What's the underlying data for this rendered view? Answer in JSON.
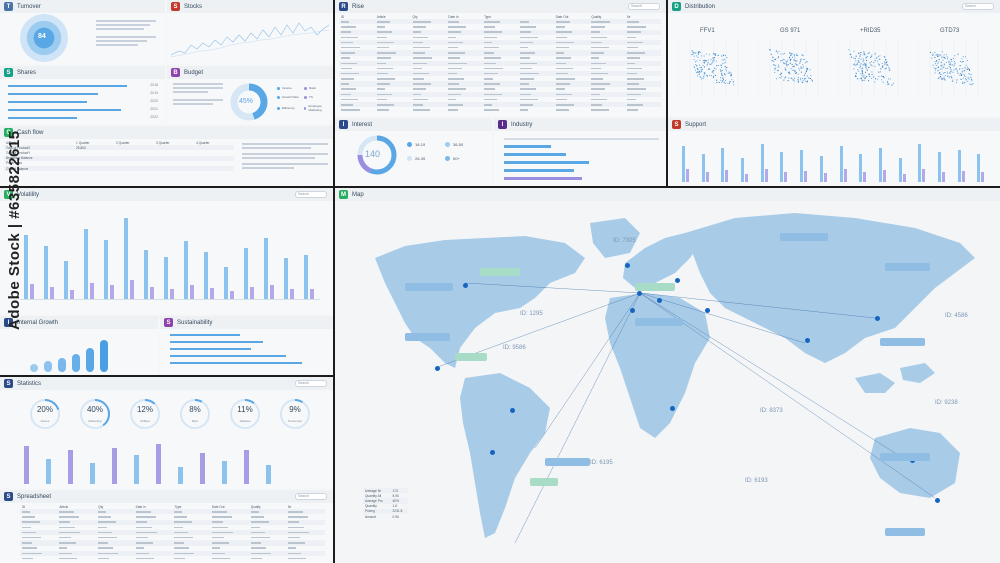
{
  "panels": {
    "turnover": {
      "badge": "T",
      "title": "Turnover",
      "center_value": "84"
    },
    "stocks": {
      "badge": "S",
      "title": "Stocks"
    },
    "shares": {
      "badge": "S",
      "title": "Shares",
      "bars": [
        0.95,
        0.72,
        0.63,
        0.9,
        0.55
      ],
      "labels": [
        "2018",
        "2019",
        "2020",
        "2021",
        "2022"
      ]
    },
    "budget": {
      "badge": "B",
      "title": "Budget",
      "pct": "45%",
      "legend": [
        "Income",
        "Ratio",
        "Growth Rate",
        "TS",
        "Efficiency",
        "Employee Marketing"
      ]
    },
    "cashflow": {
      "badge": "C",
      "title": "Cash flow",
      "headers": [
        "AllData",
        "1 Quarter",
        "2 Quarter",
        "3 Quarter",
        "4 Quarter"
      ],
      "rows": [
        [
          "Total of ProductX",
          "25,800",
          "",
          "",
          ""
        ],
        [
          "Total of ProductY",
          "",
          "",
          "",
          ""
        ],
        [
          "Beginning Balance",
          "",
          "",
          "",
          ""
        ],
        [
          "Profit/ Loss",
          "",
          "",
          "",
          ""
        ],
        [
          "Closed Balance",
          "",
          "",
          "",
          ""
        ]
      ]
    },
    "rise": {
      "badge": "R",
      "title": "Rise",
      "search": "Search",
      "headers": [
        "ID",
        "Article",
        "Qty",
        "Date In",
        "Type",
        "",
        "Date Out",
        "Quality",
        "Nr"
      ]
    },
    "distribution": {
      "badge": "D",
      "title": "Distribution",
      "search": "Search",
      "labels": [
        "FFV1",
        "GS 971",
        "+RID35",
        "GTD73"
      ]
    },
    "interest": {
      "badge": "I",
      "title": "Interest",
      "center_value": "140",
      "legend": [
        "18-19",
        "36-50",
        "26-35",
        "50+"
      ]
    },
    "industry": {
      "badge": "I",
      "title": "Industry"
    },
    "support": {
      "badge": "S",
      "title": "Support",
      "bars": [
        0.9,
        0.7,
        0.85,
        0.6,
        0.95,
        0.75,
        0.8,
        0.65,
        0.9,
        0.7,
        0.85,
        0.6,
        0.95,
        0.75,
        0.8,
        0.7
      ]
    },
    "volatility": {
      "badge": "V",
      "title": "Volatility",
      "search": "Search",
      "bars": [
        0.75,
        0.62,
        0.45,
        0.82,
        0.7,
        0.95,
        0.58,
        0.5,
        0.68,
        0.55,
        0.38,
        0.6,
        0.72,
        0.48,
        0.52
      ]
    },
    "internal_growth": {
      "badge": "I",
      "title": "Internal Growth"
    },
    "sustainability": {
      "badge": "S",
      "title": "Sustainability"
    },
    "statistics": {
      "badge": "S",
      "title": "Statistics",
      "search": "Search",
      "stats": [
        {
          "value": "20%",
          "label": "Issues",
          "fill": 0.2
        },
        {
          "value": "40%",
          "label": "Marketing",
          "fill": 0.4
        },
        {
          "value": "12%",
          "label": "Utilities",
          "fill": 0.12
        },
        {
          "value": "8%",
          "label": "Rent",
          "fill": 0.08
        },
        {
          "value": "11%",
          "label": "Salaries",
          "fill": 0.11
        },
        {
          "value": "9%",
          "label": "Personnel",
          "fill": 0.09
        }
      ]
    },
    "spreadsheet": {
      "badge": "S",
      "title": "Spreadsheet",
      "search": "Search",
      "headers": [
        "ID",
        "Article",
        "Qty",
        "Date In",
        "Type",
        "Date Out",
        "Quality",
        "Nr"
      ]
    },
    "map": {
      "badge": "M",
      "title": "Map",
      "ids": [
        "ID: 7305",
        "ID: 1295",
        "ID: 9586",
        "ID: 4586",
        "ID: 8373",
        "ID: 9238",
        "ID: 6195",
        "ID: 6193"
      ],
      "summary": [
        [
          "Average Nr",
          "173"
        ],
        [
          "Quantity All",
          "5.90"
        ],
        [
          "Average Pro",
          "40%"
        ],
        [
          "Quantity",
          "1.6"
        ],
        [
          "Pricing",
          "2231 $"
        ],
        [
          "Amount",
          "0.96"
        ]
      ]
    }
  },
  "watermark": {
    "text": "Adobe Stock | #635822615"
  },
  "colors": {
    "accent": "#5aa7e6",
    "purple": "#9b8ee0",
    "map_land": "#a8cbe8",
    "dot": "#1565c0",
    "green_tag": "#a9dcc6"
  }
}
